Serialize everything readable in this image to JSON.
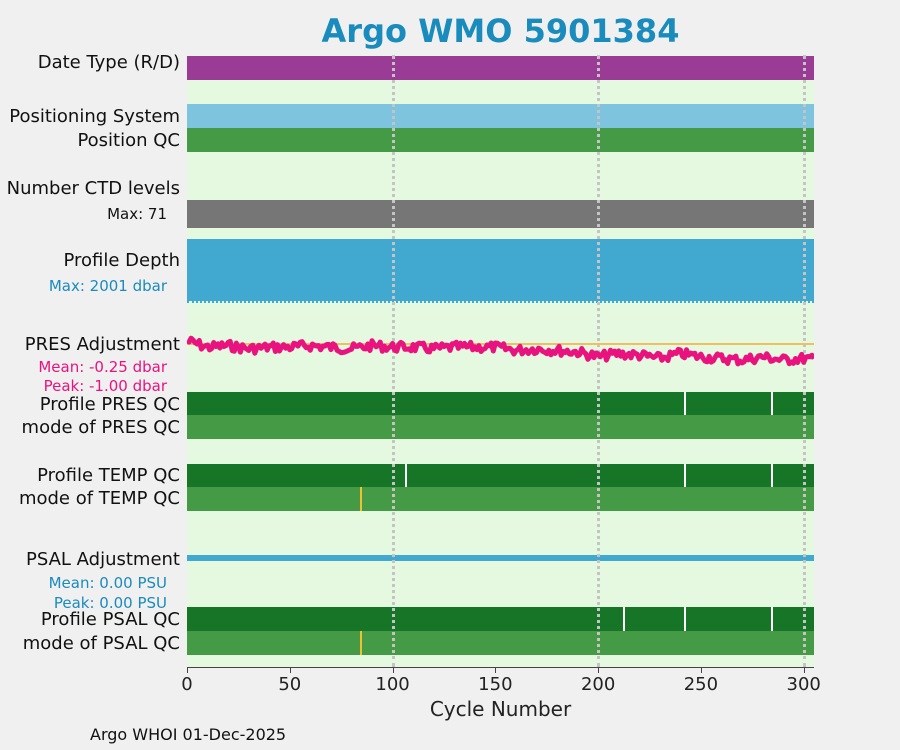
{
  "chart_data": {
    "type": "line",
    "title": "Argo WMO 5901384",
    "xlabel": "Cycle Number",
    "xlim": [
      0,
      305
    ],
    "xticks": [
      "0",
      "50",
      "100",
      "150",
      "200",
      "250",
      "300"
    ],
    "grid": true,
    "rows": {
      "date_type": "Date Type (R/D)",
      "positioning_system": "Positioning System",
      "position_qc": "Position QC",
      "number_ctd_levels": "Number CTD levels",
      "ctd_max": "Max: 71",
      "profile_depth": "Profile Depth",
      "depth_max": "Max: 2001 dbar",
      "pres_adjustment": "PRES Adjustment",
      "pres_mean": "Mean: -0.25 dbar",
      "pres_peak": "Peak: -1.00 dbar",
      "profile_pres_qc": "Profile PRES QC",
      "mode_pres_qc": "mode of PRES QC",
      "profile_temp_qc": "Profile TEMP QC",
      "mode_temp_qc": "mode of TEMP QC",
      "psal_adjustment": "PSAL Adjustment",
      "psal_mean": "Mean: 0.00 PSU",
      "psal_peak": "Peak: 0.00 PSU",
      "profile_psal_qc": "Profile PSAL QC",
      "mode_psal_qc": "mode of PSAL QC"
    },
    "qc_markers": {
      "profile_pres_qc": [
        242,
        284
      ],
      "profile_temp_qc": [
        106,
        242,
        284
      ],
      "mode_temp_qc": [
        84
      ],
      "profile_psal_qc": [
        212,
        242,
        284
      ],
      "mode_psal_qc": [
        84
      ]
    },
    "pres_adjustment_series": {
      "x": [
        0,
        10,
        20,
        30,
        40,
        50,
        60,
        70,
        80,
        90,
        100,
        110,
        120,
        130,
        140,
        150,
        160,
        170,
        180,
        190,
        200,
        210,
        220,
        230,
        240,
        250,
        260,
        270,
        280,
        290,
        300,
        305
      ],
      "y": [
        0.1,
        -0.1,
        -0.05,
        -0.15,
        -0.1,
        -0.1,
        -0.05,
        -0.1,
        -0.15,
        -0.05,
        -0.1,
        -0.1,
        -0.15,
        -0.1,
        -0.1,
        -0.1,
        -0.2,
        -0.15,
        -0.2,
        -0.25,
        -0.4,
        -0.3,
        -0.35,
        -0.45,
        -0.3,
        -0.4,
        -0.45,
        -0.5,
        -0.4,
        -0.5,
        -0.45,
        -0.5
      ]
    },
    "colors": {
      "date_type": "#9a3c96",
      "positioning_system": "#7ec4de",
      "qc_good": "#459b45",
      "qc_profile": "#177527",
      "ctd_levels": "#767676",
      "profile_depth": "#41a9cf",
      "pres_line": "#e8137e",
      "psal_line": "#41a9cf",
      "zero_line": "#f0c060",
      "qc_marker_yellow": "#f0c030",
      "qc_marker_white": "#ffffff"
    }
  },
  "footer": "Argo WHOI 01-Dec-2025"
}
